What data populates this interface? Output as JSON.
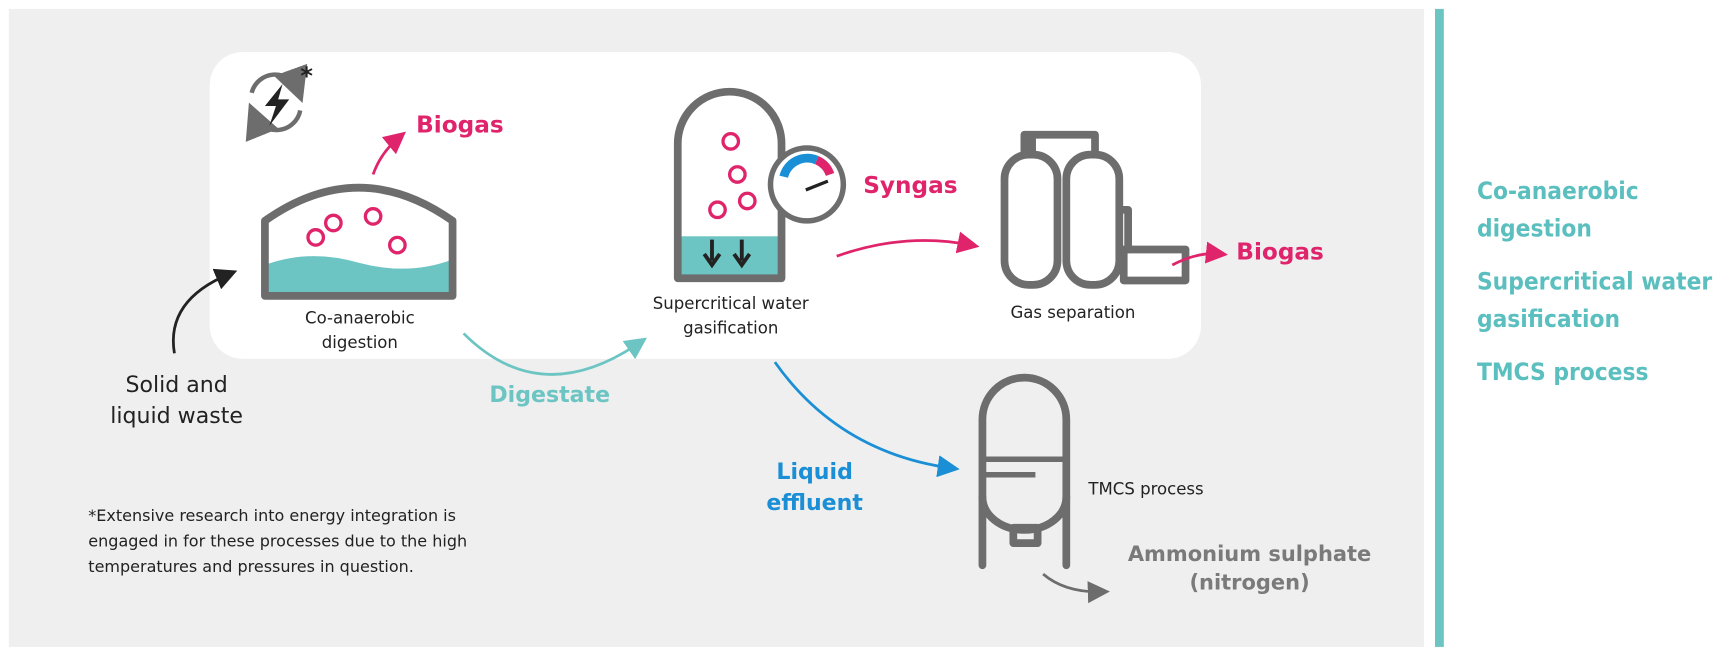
{
  "labels": {
    "asterisk": "*",
    "biogas_top": "Biogas",
    "co_anaerobic": [
      "Co-anaerobic",
      "digestion"
    ],
    "scwg": [
      "Supercritical water",
      "gasification"
    ],
    "syngas": "Syngas",
    "gas_separation": "Gas separation",
    "biogas_right": "Biogas",
    "solid_waste": [
      "Solid and",
      "liquid waste"
    ],
    "digestate": "Digestate",
    "liquid_effluent": [
      "Liquid",
      "effluent"
    ],
    "tmcs": "TMCS process",
    "ammonium": [
      "Ammonium sulphate",
      "(nitrogen)"
    ],
    "footnote": [
      "*Extensive research into energy integration is",
      "engaged in for these processes due to the high",
      "temperatures and pressures in question."
    ]
  },
  "sidebar": [
    [
      "Co-anaerobic",
      "digestion"
    ],
    [
      "Supercritical water",
      "gasification"
    ],
    [
      "TMCS process"
    ]
  ]
}
